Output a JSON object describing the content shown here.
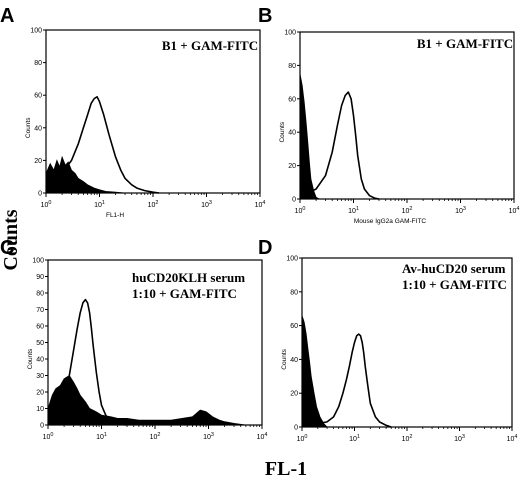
{
  "figure": {
    "ylabel": "Counts",
    "xlabel": "FL-1"
  },
  "chart_data": [
    {
      "type": "area",
      "panel": "A",
      "annotation": [
        "B1 + GAM-FITC"
      ],
      "xlabel": "FL1-H",
      "ylabel": "Counts",
      "xscale": "log",
      "xlim": [
        1,
        10000
      ],
      "ylim": [
        0,
        100
      ],
      "yticks": [
        0,
        20,
        40,
        60,
        80,
        100
      ],
      "xticks": [
        "10^0",
        "10^1",
        "10^2",
        "10^3",
        "10^4"
      ],
      "series": [
        {
          "style": "filled",
          "x": [
            1.0,
            1.2,
            1.4,
            1.6,
            1.8,
            2.0,
            2.3,
            2.6,
            3.0,
            3.5,
            4.0,
            5.0,
            6.0,
            8.0,
            10,
            13,
            20,
            30
          ],
          "y": [
            12,
            18,
            14,
            20,
            16,
            22,
            17,
            19,
            14,
            12,
            9,
            7,
            5,
            3,
            2,
            1,
            0.5,
            0
          ]
        },
        {
          "style": "outline",
          "x": [
            1.0,
            1.5,
            2.0,
            3.0,
            4.0,
            5.0,
            6.0,
            7.0,
            8.0,
            9.0,
            10,
            12,
            15,
            20,
            25,
            30,
            40,
            50,
            70,
            100,
            130
          ],
          "y": [
            2,
            6,
            12,
            20,
            30,
            40,
            48,
            55,
            58,
            59,
            56,
            48,
            36,
            22,
            14,
            9,
            5,
            3,
            1.5,
            0.5,
            0
          ]
        }
      ]
    },
    {
      "type": "area",
      "panel": "B",
      "annotation": [
        "B1 + GAM-FITC"
      ],
      "xlabel": "Mouse IgG2a GAM-FITC",
      "ylabel": "Counts",
      "xscale": "log",
      "xlim": [
        1,
        10000
      ],
      "ylim": [
        0,
        100
      ],
      "yticks": [
        0,
        20,
        40,
        60,
        80,
        100
      ],
      "xticks": [
        "10^0",
        "10^1",
        "10^2",
        "10^3",
        "10^4"
      ],
      "series": [
        {
          "style": "filled",
          "x": [
            1.0,
            1.1,
            1.2,
            1.3,
            1.4,
            1.5,
            1.6,
            1.8,
            2.0,
            2.3
          ],
          "y": [
            75,
            68,
            58,
            46,
            34,
            22,
            12,
            5,
            1,
            0
          ]
        },
        {
          "style": "outline",
          "x": [
            1.0,
            1.5,
            2.0,
            3.0,
            4.0,
            5.0,
            6.0,
            7.0,
            8.0,
            9.0,
            10,
            11,
            12,
            14,
            16,
            20,
            25,
            30
          ],
          "y": [
            3,
            4,
            6,
            14,
            28,
            44,
            56,
            62,
            64,
            60,
            50,
            38,
            26,
            12,
            6,
            2,
            0.5,
            0
          ]
        }
      ]
    },
    {
      "type": "area",
      "panel": "C",
      "annotation": [
        "huCD20KLH serum",
        "1:10 + GAM-FITC"
      ],
      "xlabel": "",
      "ylabel": "Counts",
      "xscale": "log",
      "xlim": [
        1,
        10000
      ],
      "ylim": [
        0,
        100
      ],
      "yticks": [
        0,
        10,
        20,
        30,
        40,
        50,
        60,
        70,
        80,
        90,
        100
      ],
      "xticks": [
        "10^0",
        "10^1",
        "10^2",
        "10^3",
        "10^4"
      ],
      "series": [
        {
          "style": "filled",
          "x": [
            1.0,
            1.2,
            1.4,
            1.7,
            2.0,
            2.5,
            3.0,
            3.5,
            4.0,
            5.0,
            6.0,
            8.0,
            10,
            15,
            20,
            30,
            50,
            100,
            200,
            500,
            700,
            900,
            1200,
            1600,
            2000,
            3000,
            5000
          ],
          "y": [
            10,
            18,
            22,
            24,
            28,
            30,
            26,
            22,
            18,
            14,
            10,
            8,
            6,
            5,
            4,
            4,
            3,
            3,
            3,
            5,
            9,
            8,
            5,
            3,
            2,
            1,
            0
          ]
        },
        {
          "style": "outline",
          "x": [
            1.0,
            1.5,
            2.0,
            2.5,
            3.0,
            3.5,
            4.0,
            4.5,
            5.0,
            5.5,
            6.0,
            6.5,
            7.0,
            8.0,
            9.0,
            10,
            12,
            14,
            17,
            20,
            30
          ],
          "y": [
            3,
            8,
            15,
            30,
            45,
            58,
            68,
            74,
            76,
            74,
            68,
            58,
            48,
            32,
            20,
            12,
            6,
            3,
            1.5,
            0.5,
            0
          ]
        }
      ]
    },
    {
      "type": "area",
      "panel": "D",
      "annotation": [
        "Av-huCD20 serum",
        "1:10 + GAM-FITC"
      ],
      "xlabel": "",
      "ylabel": "Counts",
      "xscale": "log",
      "xlim": [
        1,
        10000
      ],
      "ylim": [
        0,
        100
      ],
      "yticks": [
        0,
        20,
        40,
        60,
        80,
        100
      ],
      "xticks": [
        "10^0",
        "10^1",
        "10^2",
        "10^3",
        "10^4"
      ],
      "series": [
        {
          "style": "filled",
          "x": [
            1.0,
            1.1,
            1.2,
            1.3,
            1.4,
            1.5,
            1.7,
            1.9,
            2.2,
            2.6,
            3.0
          ],
          "y": [
            66,
            62,
            55,
            46,
            38,
            30,
            20,
            12,
            6,
            2,
            0
          ]
        },
        {
          "style": "outline",
          "x": [
            1.0,
            2.0,
            3.0,
            4.0,
            5.0,
            6.0,
            7.0,
            8.0,
            9.0,
            10,
            11,
            12,
            13,
            14,
            15,
            16,
            18,
            20,
            25,
            30,
            40,
            50
          ],
          "y": [
            2,
            2,
            3,
            6,
            12,
            20,
            28,
            36,
            44,
            50,
            54,
            55,
            54,
            50,
            44,
            36,
            24,
            14,
            6,
            3,
            1,
            0
          ]
        }
      ]
    }
  ]
}
